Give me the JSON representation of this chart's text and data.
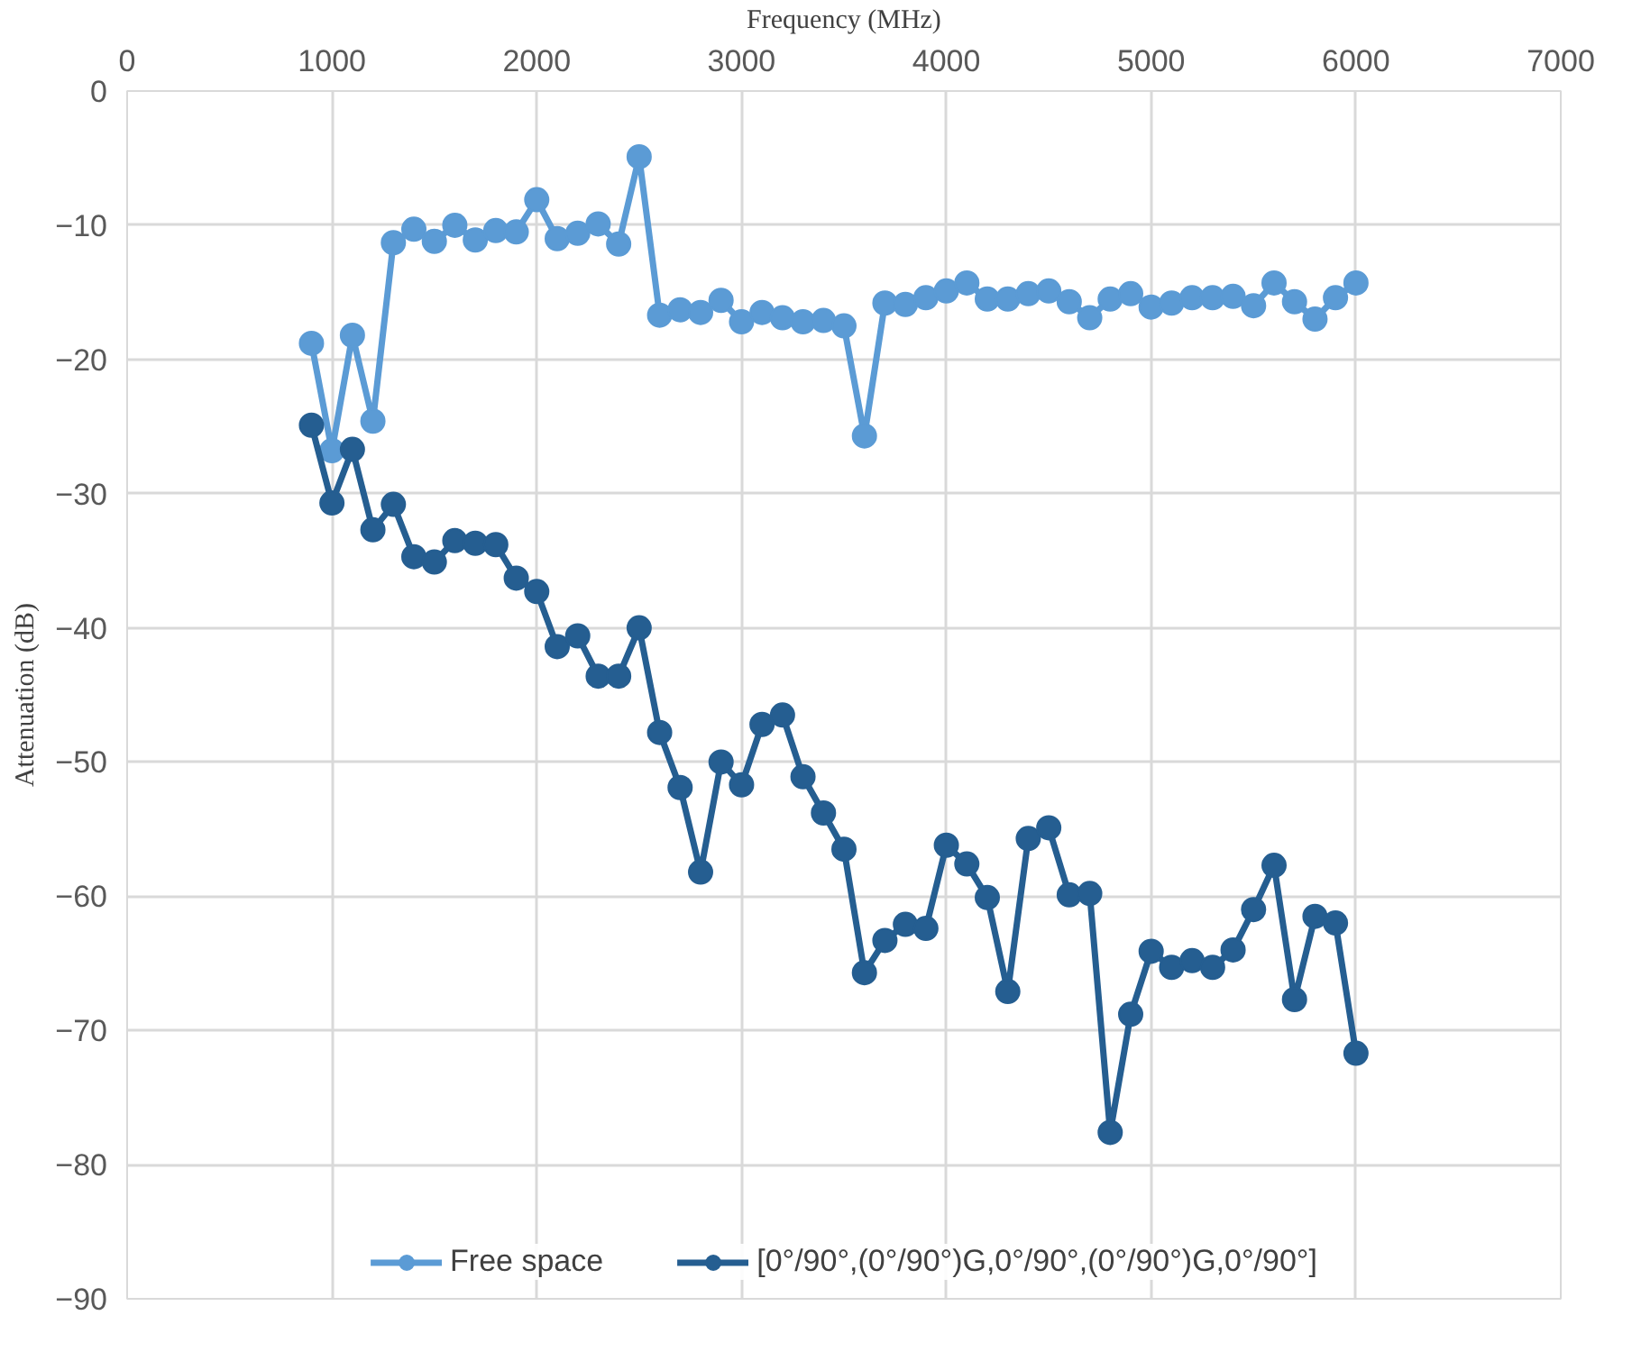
{
  "chart_data": {
    "type": "line",
    "xlabel": "Frequency (MHz)",
    "ylabel": "Attenuation (dB)",
    "x": [
      900,
      1000,
      1100,
      1200,
      1300,
      1400,
      1500,
      1600,
      1700,
      1800,
      1900,
      2000,
      2100,
      2200,
      2300,
      2400,
      2500,
      2600,
      2700,
      2800,
      2900,
      3000,
      3100,
      3200,
      3300,
      3400,
      3500,
      3600,
      3700,
      3800,
      3900,
      4000,
      4100,
      4200,
      4300,
      4400,
      4500,
      4600,
      4700,
      4800,
      4900,
      5000,
      5100,
      5200,
      5300,
      5400,
      5500,
      5600,
      5700,
      5800,
      5900,
      6000
    ],
    "series": [
      {
        "name": "Free space",
        "color": "#5b9bd5",
        "values": [
          -18.8,
          -26.8,
          -18.2,
          -24.6,
          -11.3,
          -10.3,
          -11.2,
          -10.0,
          -11.1,
          -10.4,
          -10.5,
          -8.1,
          -11.0,
          -10.6,
          -9.9,
          -11.4,
          -4.9,
          -16.7,
          -16.3,
          -16.5,
          -15.6,
          -17.2,
          -16.5,
          -16.9,
          -17.2,
          -17.1,
          -17.5,
          -25.7,
          -15.8,
          -15.9,
          -15.4,
          -14.9,
          -14.3,
          -15.5,
          -15.5,
          -15.1,
          -14.9,
          -15.7,
          -16.9,
          -15.5,
          -15.1,
          -16.1,
          -15.8,
          -15.4,
          -15.4,
          -15.3,
          -16.0,
          -14.3,
          -15.7,
          -17.0,
          -15.4,
          -14.3
        ]
      },
      {
        "name": "[0°/90°,(0°/90°)G,0°/90°,(0°/90°)G,0°/90°]",
        "color": "#255e91",
        "values": [
          -24.9,
          -30.7,
          -26.7,
          -32.7,
          -30.8,
          -34.7,
          -35.1,
          -33.5,
          -33.7,
          -33.8,
          -36.3,
          -37.3,
          -41.4,
          -40.6,
          -43.6,
          -43.6,
          -40.0,
          -47.8,
          -51.9,
          -58.2,
          -50.0,
          -51.7,
          -47.2,
          -46.5,
          -51.1,
          -53.8,
          -56.5,
          -65.7,
          -63.3,
          -62.1,
          -62.4,
          -56.2,
          -57.6,
          -60.1,
          -67.1,
          -55.7,
          -54.9,
          -59.9,
          -59.8,
          -77.6,
          -68.8,
          -64.1,
          -65.3,
          -64.8,
          -65.3,
          -64.0,
          -61.0,
          -57.7,
          -67.7,
          -61.5,
          -62.0,
          -71.7
        ]
      }
    ],
    "xlim": [
      0,
      7000
    ],
    "xticks": [
      0,
      1000,
      2000,
      3000,
      4000,
      5000,
      6000,
      7000
    ],
    "ylim": [
      -90,
      0
    ],
    "yticks": [
      -90,
      -80,
      -70,
      -60,
      -50,
      -40,
      -30,
      -20,
      -10,
      0
    ],
    "grid": true,
    "legend": "bottom",
    "marker": "circle",
    "line_style": "solid"
  }
}
